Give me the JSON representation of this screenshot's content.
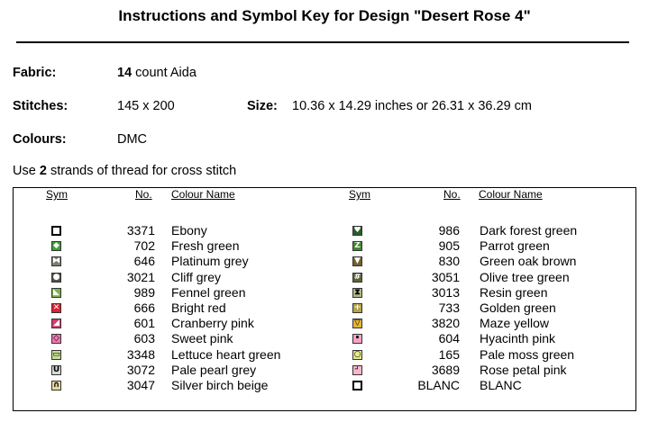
{
  "title": "Instructions and Symbol Key for Design \"Desert Rose 4\"",
  "fabric": {
    "label": "Fabric:",
    "count": "14",
    "rest": "count Aida"
  },
  "stitches": {
    "label": "Stitches:",
    "value": "145 x 200"
  },
  "size": {
    "label": "Size:",
    "value": "10.36 x 14.29 inches or 26.31 x 36.29 cm"
  },
  "colours": {
    "label": "Colours:",
    "value": "DMC"
  },
  "instruction": {
    "pre": "Use",
    "strands": "2",
    "post": "strands of thread for cross stitch"
  },
  "headers": {
    "sym": "Sym",
    "no": "No.",
    "name": "Colour Name"
  },
  "left": [
    {
      "no": "3371",
      "name": "Ebony",
      "bg": "#ffffff",
      "fg": "#000000",
      "glyph": ""
    },
    {
      "no": "702",
      "name": "Fresh green",
      "bg": "#3aa335",
      "fg": "#ffffff",
      "glyph": "◆"
    },
    {
      "no": "646",
      "name": "Platinum grey",
      "bg": "#7e7e74",
      "fg": "#ffffff",
      "glyph": "⧓"
    },
    {
      "no": "3021",
      "name": "Cliff grey",
      "bg": "#54504a",
      "fg": "#ffffff",
      "glyph": "●"
    },
    {
      "no": "989",
      "name": "Fennel green",
      "bg": "#7fb34b",
      "fg": "#ffffff",
      "glyph": "◣"
    },
    {
      "no": "666",
      "name": "Bright red",
      "bg": "#e02030",
      "fg": "#ffffff",
      "glyph": "✕"
    },
    {
      "no": "601",
      "name": "Cranberry pink",
      "bg": "#d23c6e",
      "fg": "#ffffff",
      "glyph": "◢"
    },
    {
      "no": "603",
      "name": "Sweet pink",
      "bg": "#ef78b0",
      "fg": "#000000",
      "glyph": "◇"
    },
    {
      "no": "3348",
      "name": "Lettuce heart green",
      "bg": "#c5dc93",
      "fg": "#000000",
      "glyph": "▭"
    },
    {
      "no": "3072",
      "name": "Pale pearl grey",
      "bg": "#d5d9d2",
      "fg": "#000000",
      "glyph": "U"
    },
    {
      "no": "3047",
      "name": "Silver birch beige",
      "bg": "#e5d79c",
      "fg": "#000000",
      "glyph": "∩"
    }
  ],
  "right": [
    {
      "no": "986",
      "name": "Dark forest green",
      "bg": "#25602a",
      "fg": "#ffffff",
      "glyph": "♥"
    },
    {
      "no": "905",
      "name": "Parrot green",
      "bg": "#3f8a2e",
      "fg": "#ffffff",
      "glyph": "Z"
    },
    {
      "no": "830",
      "name": "Green oak brown",
      "bg": "#73612f",
      "fg": "#ffffff",
      "glyph": "▼"
    },
    {
      "no": "3051",
      "name": "Olive tree green",
      "bg": "#5b6538",
      "fg": "#ffffff",
      "glyph": "#"
    },
    {
      "no": "3013",
      "name": "Resin green",
      "bg": "#b3b785",
      "fg": "#000000",
      "glyph": "⧗"
    },
    {
      "no": "733",
      "name": "Golden green",
      "bg": "#b6a44a",
      "fg": "#ffffff",
      "glyph": "+"
    },
    {
      "no": "3820",
      "name": "Maze yellow",
      "bg": "#e3b43a",
      "fg": "#000000",
      "glyph": "▽"
    },
    {
      "no": "604",
      "name": "Hyacinth pink",
      "bg": "#f5a3c5",
      "fg": "#000000",
      "glyph": "•"
    },
    {
      "no": "165",
      "name": "Pale moss green",
      "bg": "#e5ea8a",
      "fg": "#000000",
      "glyph": "○"
    },
    {
      "no": "3689",
      "name": "Rose petal pink",
      "bg": "#f7b6cc",
      "fg": "#000000",
      "glyph": "┘"
    },
    {
      "no": "BLANC",
      "name": "BLANC",
      "bg": "#ffffff",
      "fg": "#000000",
      "glyph": ""
    }
  ]
}
